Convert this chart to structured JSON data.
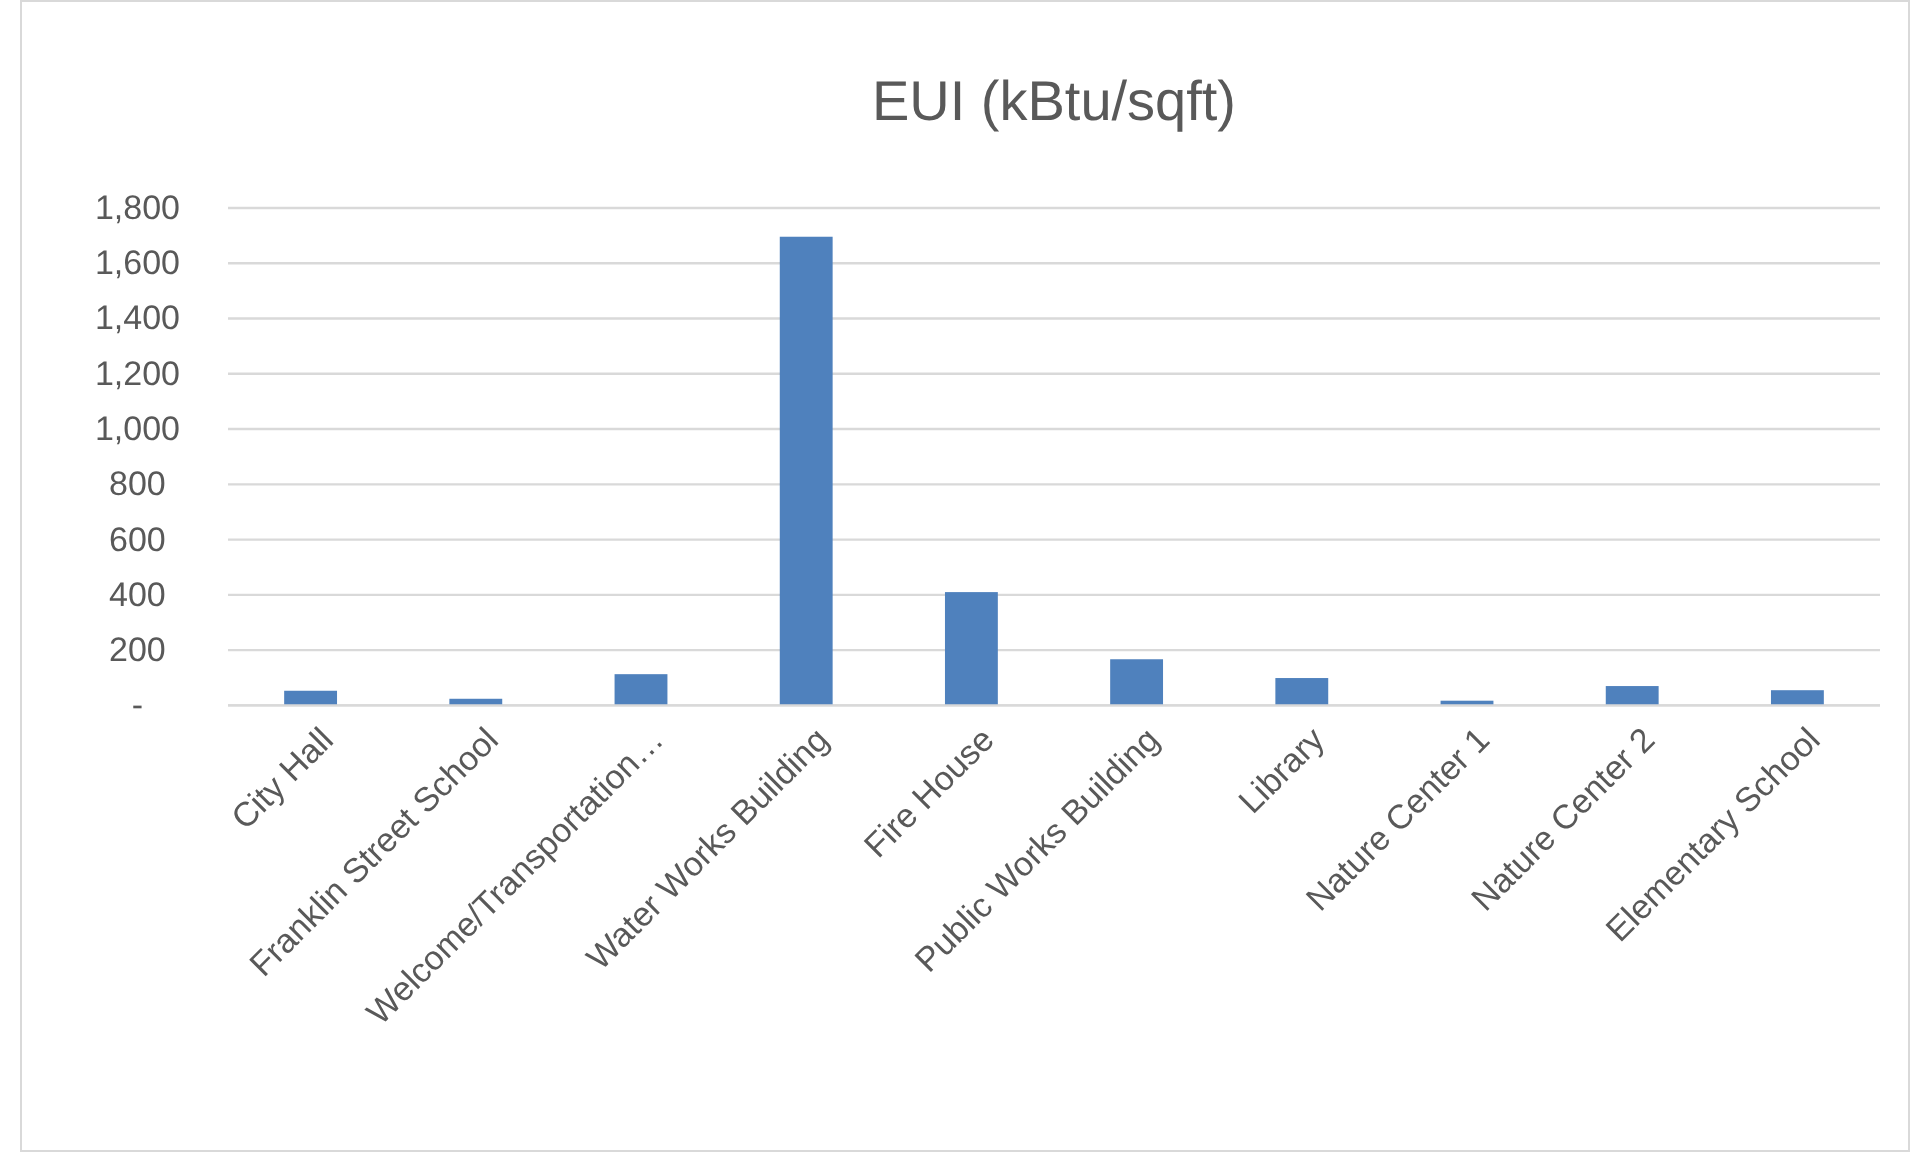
{
  "chart_data": {
    "type": "bar",
    "title": "EUI (kBtu/sqft)",
    "categories": [
      "City Hall",
      "Franklin Street School",
      "Welcome/Transportation…",
      "Water Works Building",
      "Fire House",
      "Public Works Building",
      "Library",
      "Nature Center 1",
      "Nature Center 2",
      "Elementary School"
    ],
    "values": [
      53,
      24,
      113,
      1696,
      410,
      167,
      99,
      17,
      70,
      55
    ],
    "color": "#4f81bd",
    "ylim": [
      0,
      1800
    ],
    "yticks": [
      {
        "value": 0,
        "label": "-"
      },
      {
        "value": 200,
        "label": "200"
      },
      {
        "value": 400,
        "label": "400"
      },
      {
        "value": 600,
        "label": "600"
      },
      {
        "value": 800,
        "label": "800"
      },
      {
        "value": 1000,
        "label": "1,000"
      },
      {
        "value": 1200,
        "label": "1,200"
      },
      {
        "value": 1400,
        "label": "1,400"
      },
      {
        "value": 1600,
        "label": "1,600"
      },
      {
        "value": 1800,
        "label": "1,800"
      }
    ],
    "grid": "y"
  }
}
